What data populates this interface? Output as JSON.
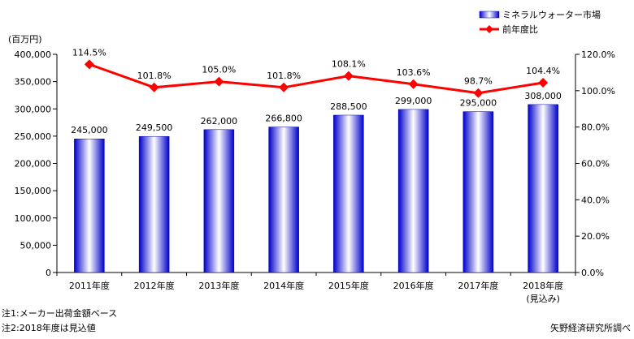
{
  "chart_data": {
    "type": "bar",
    "categories": [
      "2011年度",
      "2012年度",
      "2013年度",
      "2014年度",
      "2015年度",
      "2016年度",
      "2017年度",
      "2018年度"
    ],
    "category_sublabels": [
      "",
      "",
      "",
      "",
      "",
      "",
      "",
      "(見込み)"
    ],
    "series": [
      {
        "name": "ミネラルウォーター市場",
        "type": "bar",
        "axis": "left",
        "values": [
          245000,
          249500,
          262000,
          266800,
          288500,
          299000,
          295000,
          308000
        ],
        "labels": [
          "245,000",
          "249,500",
          "262,000",
          "266,800",
          "288,500",
          "299,000",
          "295,000",
          "308,000"
        ]
      },
      {
        "name": "前年度比",
        "type": "line",
        "axis": "right",
        "values": [
          114.5,
          101.8,
          105.0,
          101.8,
          108.1,
          103.6,
          98.7,
          104.4
        ],
        "labels": [
          "114.5%",
          "101.8%",
          "105.0%",
          "101.8%",
          "108.1%",
          "103.6%",
          "98.7%",
          "104.4%"
        ]
      }
    ],
    "ylabel": "(百万円)",
    "ylim": [
      0,
      400000
    ],
    "y_ticks": [
      "0",
      "50,000",
      "100,000",
      "150,000",
      "200,000",
      "250,000",
      "300,000",
      "350,000",
      "400,000"
    ],
    "y2lim": [
      0,
      120
    ],
    "y2_ticks": [
      "0.0%",
      "20.0%",
      "40.0%",
      "60.0%",
      "80.0%",
      "100.0%",
      "120.0%"
    ],
    "legend_position": "top-right",
    "grid": false,
    "colors": {
      "bar_edge": "#0000cc",
      "bar_mid": "#ffffff",
      "line": "#ff0000"
    }
  },
  "notes": [
    "注1:メーカー出荷金額ベース",
    "注2:2018年度は見込値"
  ],
  "source": "矢野経済研究所調べ"
}
